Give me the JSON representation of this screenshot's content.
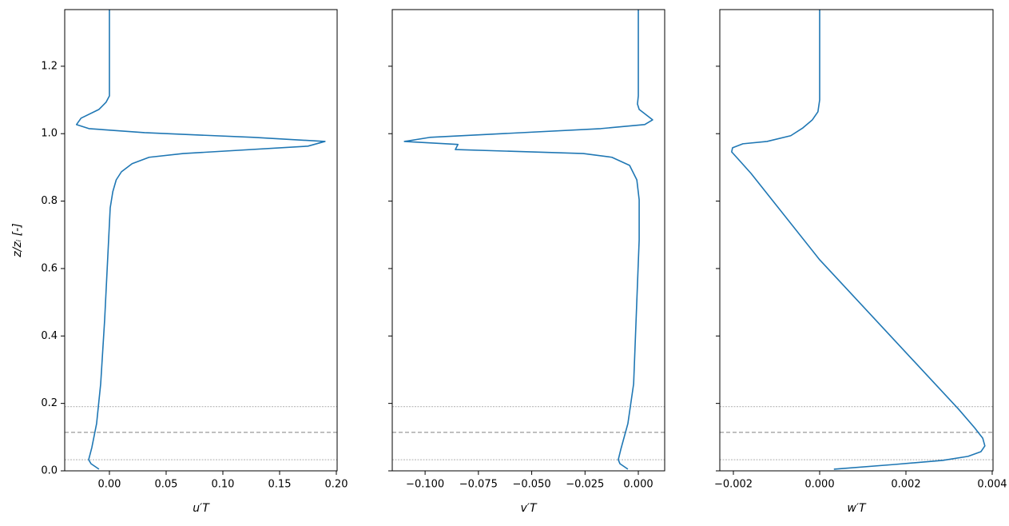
{
  "chart_data": [
    {
      "type": "line",
      "xlabel": "u′T",
      "ylabel": "z/zᵢ [-]",
      "xlim": [
        -0.0394,
        0.2007
      ],
      "xticks": [
        {
          "value": 0,
          "label": "0.00"
        },
        {
          "value": 0.05,
          "label": "0.05"
        },
        {
          "value": 0.1,
          "label": "0.10"
        },
        {
          "value": 0.15,
          "label": "0.15"
        },
        {
          "value": 0.2,
          "label": "0.20"
        }
      ],
      "ylim": [
        0,
        1.368
      ],
      "yticks": [
        {
          "value": 0,
          "label": "0.0"
        },
        {
          "value": 0.2,
          "label": "0.2"
        },
        {
          "value": 0.4,
          "label": "0.4"
        },
        {
          "value": 0.6,
          "label": "0.6"
        },
        {
          "value": 0.8,
          "label": "0.8"
        },
        {
          "value": 1.0,
          "label": "1.0"
        },
        {
          "value": 1.2,
          "label": "1.2"
        }
      ],
      "hlines": [
        {
          "value": 0.033,
          "style": "dotted"
        },
        {
          "value": 0.114,
          "style": "dashed"
        },
        {
          "value": 0.19,
          "style": "dotted"
        }
      ],
      "series": [
        {
          "color": "#1f77b4",
          "values": [
            -0.0092,
            -0.0162,
            -0.0183,
            -0.0155,
            -0.0113,
            -0.0077,
            -0.0042,
            -0.0007,
            0.0007,
            0.003,
            0.006,
            0.0106,
            0.02,
            0.035,
            0.065,
            0.175,
            0.19,
            0.127,
            0.031,
            -0.018,
            -0.029,
            -0.025,
            -0.0092,
            -0.003,
            0.0,
            0.0,
            0.0
          ],
          "heights": [
            0.005,
            0.021,
            0.033,
            0.069,
            0.14,
            0.258,
            0.448,
            0.685,
            0.78,
            0.828,
            0.863,
            0.887,
            0.911,
            0.93,
            0.941,
            0.963,
            0.977,
            0.989,
            1.003,
            1.015,
            1.027,
            1.046,
            1.072,
            1.093,
            1.112,
            1.254,
            1.368
          ]
        }
      ]
    },
    {
      "type": "line",
      "xlabel": "v′T",
      "sharey": true,
      "xlim": [
        -0.1154,
        0.01236
      ],
      "xticks": [
        {
          "value": -0.1,
          "label": "−0.100"
        },
        {
          "value": -0.075,
          "label": "−0.075"
        },
        {
          "value": -0.05,
          "label": "−0.050"
        },
        {
          "value": -0.025,
          "label": "−0.025"
        },
        {
          "value": 0,
          "label": "0.000"
        }
      ],
      "series": [
        {
          "color": "#1f77b4",
          "values": [
            -0.0049,
            -0.0086,
            -0.0094,
            -0.0082,
            -0.0049,
            -0.0022,
            0.0004,
            0.0004,
            -0.0007,
            -0.0041,
            -0.0124,
            -0.0258,
            -0.0858,
            -0.0846,
            -0.1097,
            -0.0978,
            -0.0176,
            0.003,
            0.0067,
            0.0004,
            -0.0004,
            0.0,
            0.0
          ],
          "heights": [
            0.005,
            0.021,
            0.033,
            0.064,
            0.14,
            0.258,
            0.685,
            0.804,
            0.863,
            0.906,
            0.93,
            0.941,
            0.953,
            0.968,
            0.977,
            0.989,
            1.015,
            1.027,
            1.041,
            1.072,
            1.088,
            1.112,
            1.368
          ]
        }
      ]
    },
    {
      "type": "line",
      "xlabel": "w′T",
      "sharey": true,
      "xlim": [
        -0.002315,
        0.004019
      ],
      "xticks": [
        {
          "value": -0.002,
          "label": "−0.002"
        },
        {
          "value": 0,
          "label": "0.000"
        },
        {
          "value": 0.002,
          "label": "0.002"
        },
        {
          "value": 0.004,
          "label": "0.004"
        }
      ],
      "series": [
        {
          "color": "#1f77b4",
          "values": [
            0.00033,
            0.00174,
            0.00285,
            0.00344,
            0.00374,
            0.00383,
            0.00378,
            0.00359,
            0.00322,
            0.0,
            -0.00159,
            -0.00187,
            -0.00204,
            -0.00202,
            -0.00178,
            -0.00122,
            -0.00067,
            -0.00039,
            -0.00017,
            -4e-05,
            0.0,
            0.0
          ],
          "heights": [
            0.005,
            0.019,
            0.031,
            0.043,
            0.057,
            0.074,
            0.097,
            0.128,
            0.183,
            0.626,
            0.882,
            0.922,
            0.946,
            0.958,
            0.97,
            0.977,
            0.994,
            1.017,
            1.041,
            1.065,
            1.1,
            1.368
          ]
        }
      ]
    }
  ]
}
